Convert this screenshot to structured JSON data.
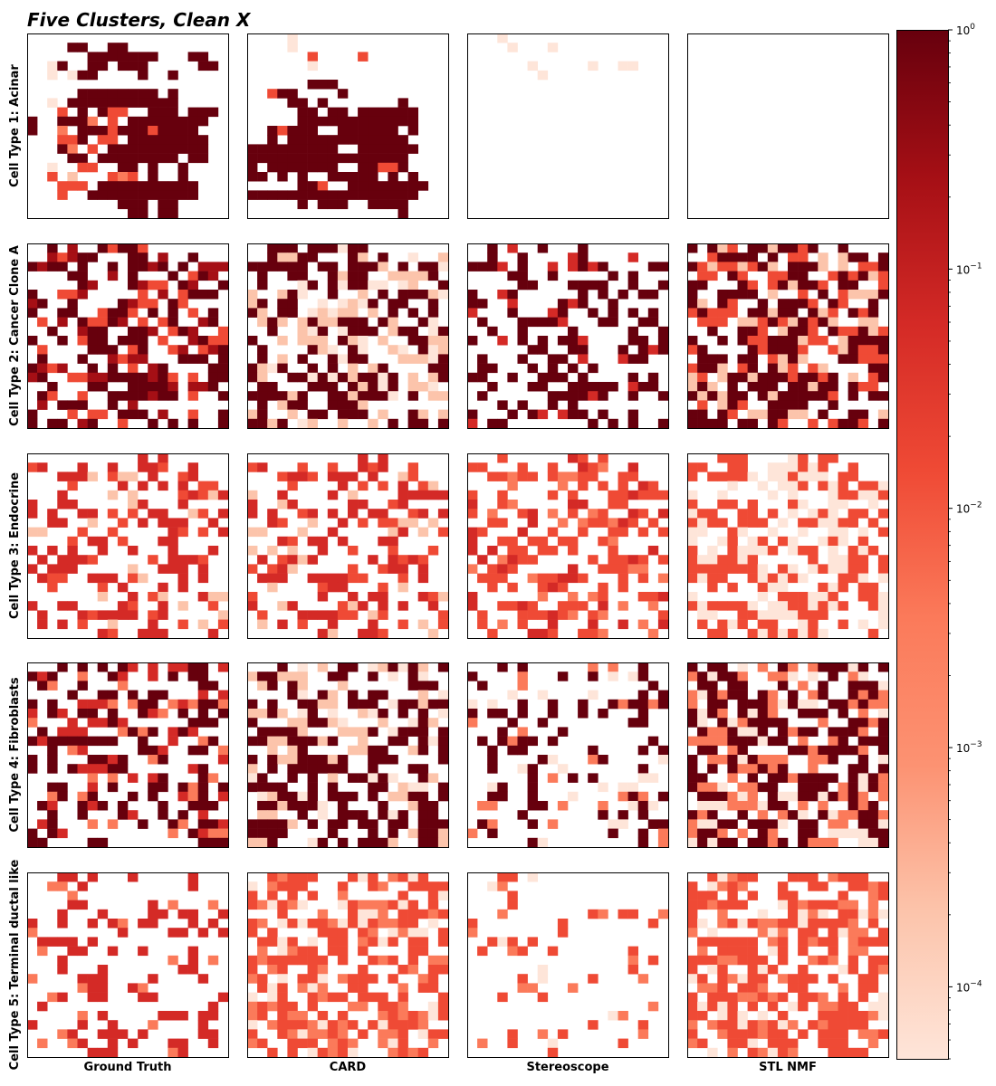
{
  "chart_data": {
    "type": "heatmap",
    "title": "Five Clusters, Clean X",
    "columns": [
      "Ground Truth",
      "CARD",
      "Stereoscope",
      "STL NMF"
    ],
    "rows": [
      "Cell Type 1: Acinar",
      "Cell Type 2: Cancer Clone A",
      "Cell Type 3: Endocrine",
      "Cell Type 4: Fibroblasts",
      "Cell Type 5: Terminal ductal like"
    ],
    "grid_size": [
      20,
      18
    ],
    "colorbar": {
      "scale": "log",
      "colormap": "Reds",
      "range": [
        5e-05,
        1
      ],
      "ticks": [
        {
          "value": 1,
          "label": "10",
          "exp": "0"
        },
        {
          "value": 0.1,
          "label": "10",
          "exp": "−1"
        },
        {
          "value": 0.01,
          "label": "10",
          "exp": "−2"
        },
        {
          "value": 0.001,
          "label": "10",
          "exp": "−3"
        },
        {
          "value": 0.0001,
          "label": "10",
          "exp": "−4"
        }
      ]
    },
    "colors": {
      "very_high": "#67000d",
      "high": "#a50f15",
      "mid": "#d42a26",
      "lowmid": "#ef4a35",
      "low": "#fb7a5a",
      "faint": "#fcc4ab",
      "trace": "#fee5d9"
    },
    "matrix_note": "Each panel is a 20×18 spatial grid of estimated cell-type proportions; values encoded as levels 0–7 (0 = empty)",
    "panels": [
      [
        [
          "00000000000000000000",
          "00007700770000000000",
          "00000077777770007700",
          "00170077077700000770",
          "00101770000700700000",
          "00000000000000000000",
          "00000777777770700000",
          "00107777777777700000",
          "00040707440077707770",
          "70077730407777777700",
          "70030777477747777000",
          "00044704407777777700",
          "00073040777777777700",
          "00007707777777707700",
          "00100440077070070000",
          "00402000434070070000",
          "00044407777777777000",
          "00040077777777777000",
          "00000000077707700000",
          "00000000007707700000"
        ],
        [
          "00001000000000000000",
          "00001000000000000000",
          "00000040000400000000",
          "00000010000000000000",
          "00000000000000000000",
          "00000077700000000000",
          "00477000070000000000",
          "00007707000000070000",
          "00000770770777777000",
          "00000777777777777000",
          "00747770077777707000",
          "00707777777777770000",
          "77777777700777777000",
          "77777777777777770000",
          "70777777700774470000",
          "77070700777770707000",
          "00000774007777777700",
          "77777777777777777000",
          "00000707770077770000",
          "00000000000000070000"
        ],
        [
          "00010000000000000000",
          "00001000100000000000",
          "00000000000000000000",
          "00000010000010011000",
          "00000001000000000000",
          "00000000000000000000",
          "00000000000000000000",
          "00000000000000000000",
          "00000000000000000000",
          "00000000000000000000",
          "00000000000000000000",
          "00000000000000000000",
          "00000000000000000000",
          "00000000000000000000",
          "00000000000000000000",
          "00000000000000000000",
          "00000000000000000000",
          "00000000000000000000",
          "00000000000000000000",
          "00000000000000000000"
        ],
        [
          "00000000000000000000",
          "00000000000000000000",
          "00000000000000000000",
          "00000000000000000000",
          "00000000000000000000",
          "00000000000000000000",
          "00000000000000000000",
          "00000000000000000000",
          "00000000000000000000",
          "00000000000000000000",
          "00000000000000000000",
          "00000000000000000000",
          "00000000000000000000",
          "00000000000000000000",
          "00000000000000000000",
          "00000000000000000000",
          "00000000000000000000",
          "00000000000000000000",
          "00000000000000000000",
          "00000000000000000000"
        ],
        [
          "00000000000000000000",
          "00000000000000000000",
          "00000000000000000000",
          "00000000000000000000",
          "00000000000000000000",
          "00000000000000000000",
          "00000000000000000000",
          "00000000000000000000",
          "00000000000000000000",
          "00000000000000000000",
          "00000000000000000000",
          "00000000000000000000",
          "00000000000000000000",
          "00000000000000000000",
          "00000000000000000000",
          "00000000000000000000",
          "00000000000000000000",
          "00000000000000000000",
          "00000000000000000000",
          "00000000000000000000"
        ]
      ]
    ]
  }
}
